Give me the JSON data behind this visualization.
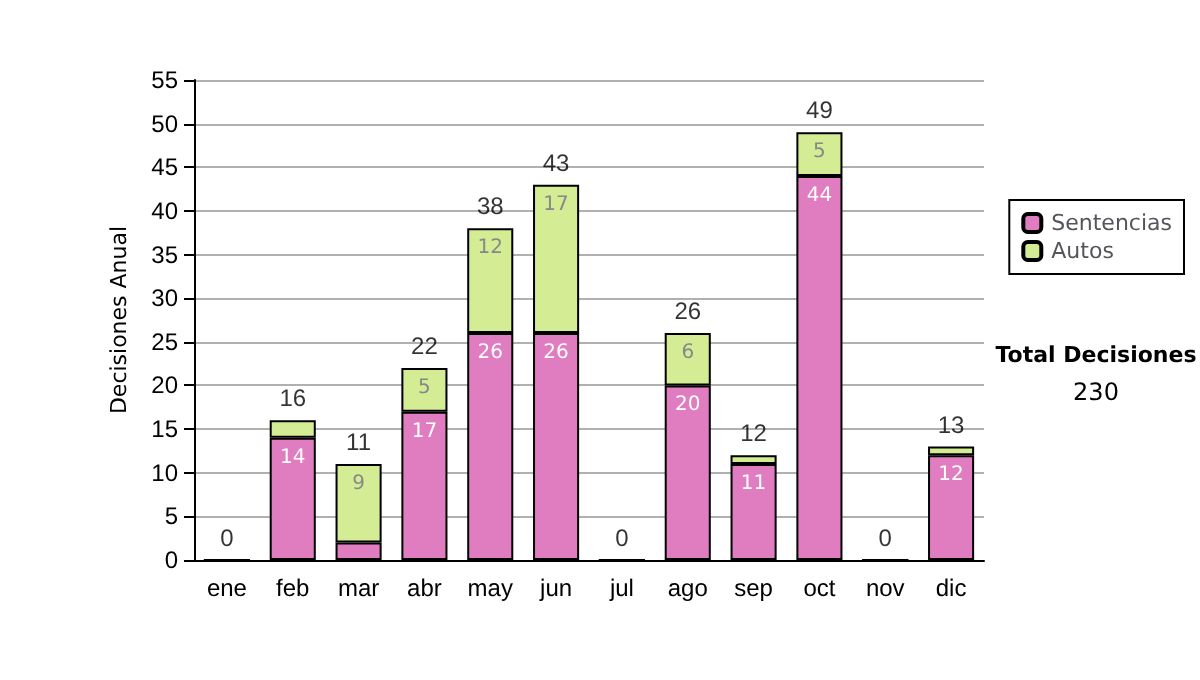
{
  "chart_data": {
    "type": "bar",
    "stacked": true,
    "ylabel": "Decisiones Anual",
    "categories": [
      "ene",
      "feb",
      "mar",
      "abr",
      "may",
      "jun",
      "jul",
      "ago",
      "sep",
      "oct",
      "nov",
      "dic"
    ],
    "series": [
      {
        "name": "Sentencias",
        "color": "#e07cc0",
        "values": [
          0,
          14,
          2,
          17,
          26,
          26,
          0,
          20,
          11,
          44,
          0,
          12
        ],
        "value_labels": [
          null,
          "14",
          null,
          "17",
          "26",
          "26",
          null,
          "20",
          "11",
          "44",
          null,
          "12"
        ]
      },
      {
        "name": "Autos",
        "color": "#d4ec94",
        "values": [
          0,
          2,
          9,
          5,
          12,
          17,
          0,
          6,
          1,
          5,
          0,
          1
        ],
        "value_labels": [
          null,
          null,
          "9",
          "5",
          "12",
          "17",
          null,
          "6",
          null,
          "5",
          null,
          null
        ]
      }
    ],
    "totals": [
      "0",
      "16",
      "11",
      "22",
      "38",
      "43",
      "0",
      "26",
      "12",
      "49",
      "0",
      "13"
    ],
    "ylim": [
      0,
      55
    ],
    "yticks": [
      0,
      5,
      10,
      15,
      20,
      25,
      30,
      35,
      40,
      45,
      50,
      55
    ],
    "grid": "y",
    "legend": "right",
    "annotations": [
      "Total Decisiones",
      "230"
    ]
  }
}
